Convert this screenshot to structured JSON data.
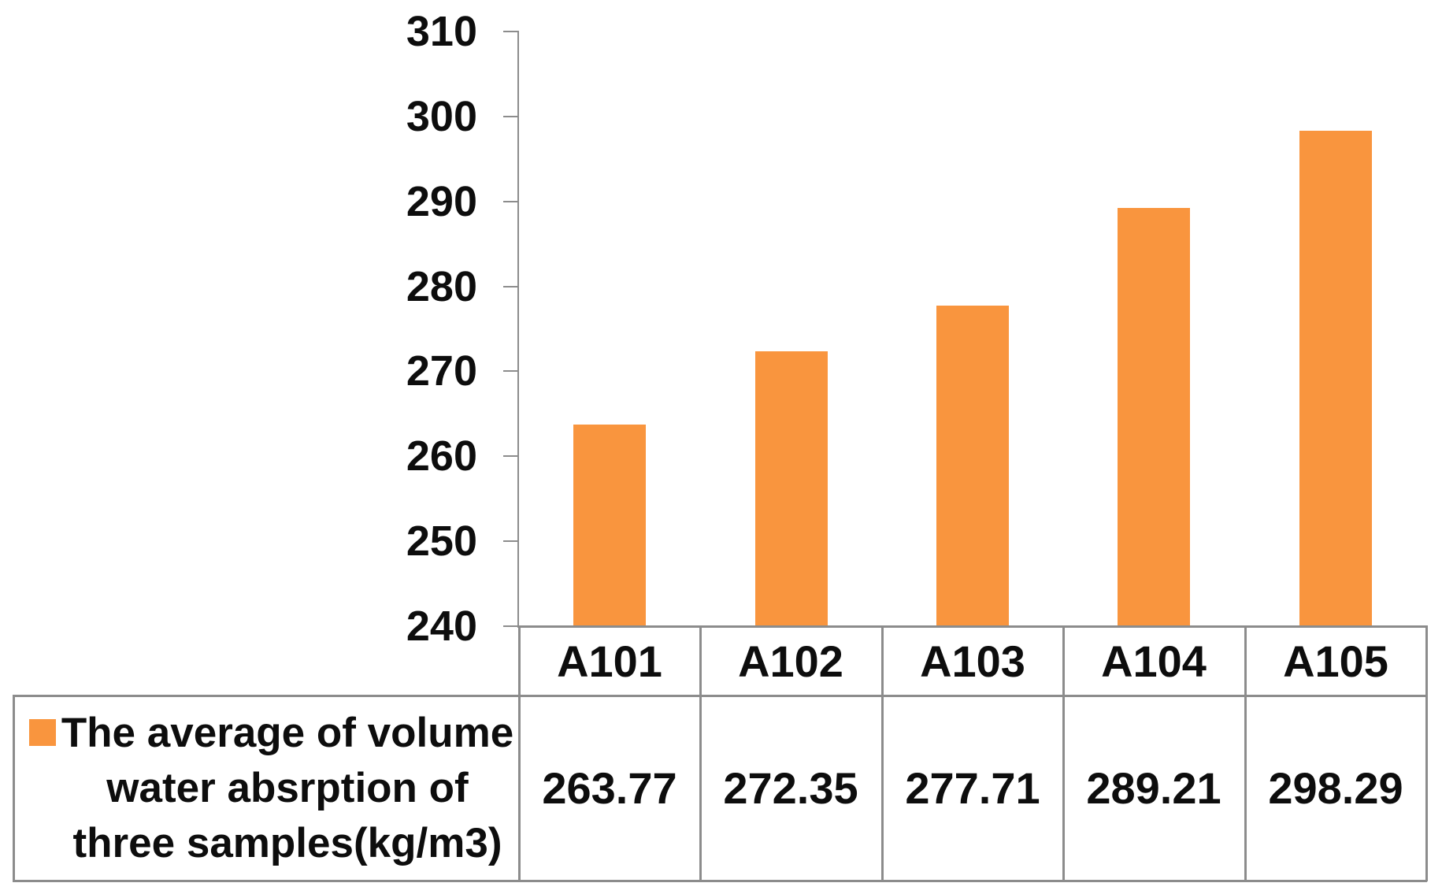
{
  "chart_data": {
    "type": "bar",
    "title": "",
    "categories": [
      "A101",
      "A102",
      "A103",
      "A104",
      "A105"
    ],
    "series": [
      {
        "name": "The average of volume water absrption of three samples(kg/m3)",
        "values": [
          263.77,
          272.35,
          277.71,
          289.21,
          298.29
        ]
      }
    ],
    "value_decimals": 2,
    "xlabel": "",
    "ylabel": "",
    "ylim": [
      240,
      310
    ],
    "yticks": [
      240,
      250,
      260,
      270,
      280,
      290,
      300,
      310
    ],
    "grid": false,
    "legend_position": "data-table bottom-left",
    "bar_color": "#F9953E",
    "line_color": "#8c8c8c",
    "text_color": "#0d0d0d"
  },
  "legend": {
    "lines": [
      "The average of volume",
      "water absrption of",
      "three samples(kg/m3)"
    ]
  }
}
